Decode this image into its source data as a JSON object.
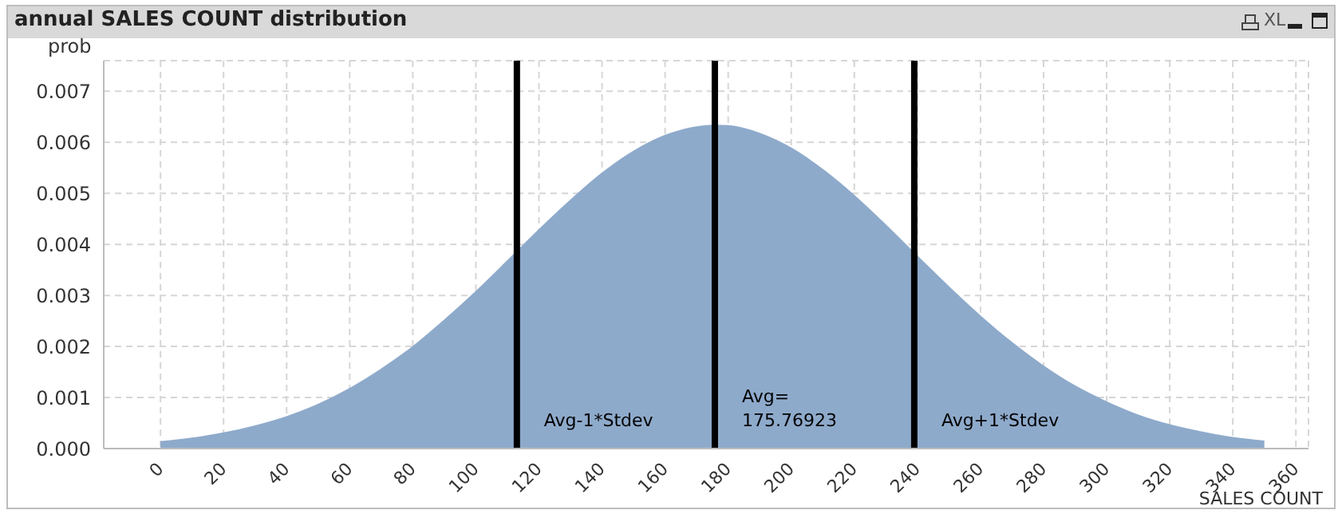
{
  "chart_data": {
    "type": "area",
    "title": "annual SALES COUNT distribution",
    "xlabel": "SALES COUNT",
    "ylabel": "prob",
    "annotations": [
      "XL"
    ],
    "x": [
      0,
      10,
      20,
      30,
      40,
      50,
      60,
      70,
      80,
      90,
      100,
      110,
      120,
      130,
      140,
      150,
      160,
      170,
      175.77,
      180,
      190,
      200,
      210,
      220,
      230,
      240,
      250,
      260,
      270,
      280,
      290,
      300,
      310,
      320,
      330,
      340,
      350
    ],
    "series": [
      {
        "color": "#8eaacb",
        "values": [
          0.00013,
          0.0002,
          0.0003,
          0.00044,
          0.00062,
          0.00086,
          0.00117,
          0.00155,
          0.00199,
          0.00251,
          0.00307,
          0.00367,
          0.00428,
          0.00486,
          0.00539,
          0.00582,
          0.00613,
          0.0063,
          0.00633,
          0.00632,
          0.00617,
          0.00588,
          0.00546,
          0.00495,
          0.00437,
          0.00376,
          0.00316,
          0.00259,
          0.00207,
          0.00161,
          0.00122,
          0.00091,
          0.00065,
          0.00046,
          0.00032,
          0.00021,
          0.00014
        ]
      }
    ],
    "xlim": [
      -18,
      364
    ],
    "xticks": [
      0,
      20,
      40,
      60,
      80,
      100,
      120,
      140,
      160,
      180,
      200,
      220,
      240,
      260,
      280,
      300,
      320,
      340,
      360
    ],
    "ylim": [
      0,
      0.0076
    ],
    "yticks": [
      {
        "value": 0,
        "label": "0.000"
      },
      {
        "value": 0.001,
        "label": "0.001"
      },
      {
        "value": 0.002,
        "label": "0.002"
      },
      {
        "value": 0.003,
        "label": "0.003"
      },
      {
        "value": 0.004,
        "label": "0.004"
      },
      {
        "value": 0.005,
        "label": "0.005"
      },
      {
        "value": 0.006,
        "label": "0.006"
      },
      {
        "value": 0.007,
        "label": "0.007"
      }
    ],
    "ref_lines": [
      {
        "axis": "x",
        "value": 113,
        "label": "Avg-1*Stdev",
        "color": "#000000"
      },
      {
        "axis": "x",
        "value": 175.76923,
        "label": "Avg=\n175.76923",
        "color": "#000000"
      },
      {
        "axis": "x",
        "value": 239,
        "label": "Avg+1*Stdev",
        "color": "#000000"
      }
    ],
    "grid": true,
    "legend": false
  }
}
